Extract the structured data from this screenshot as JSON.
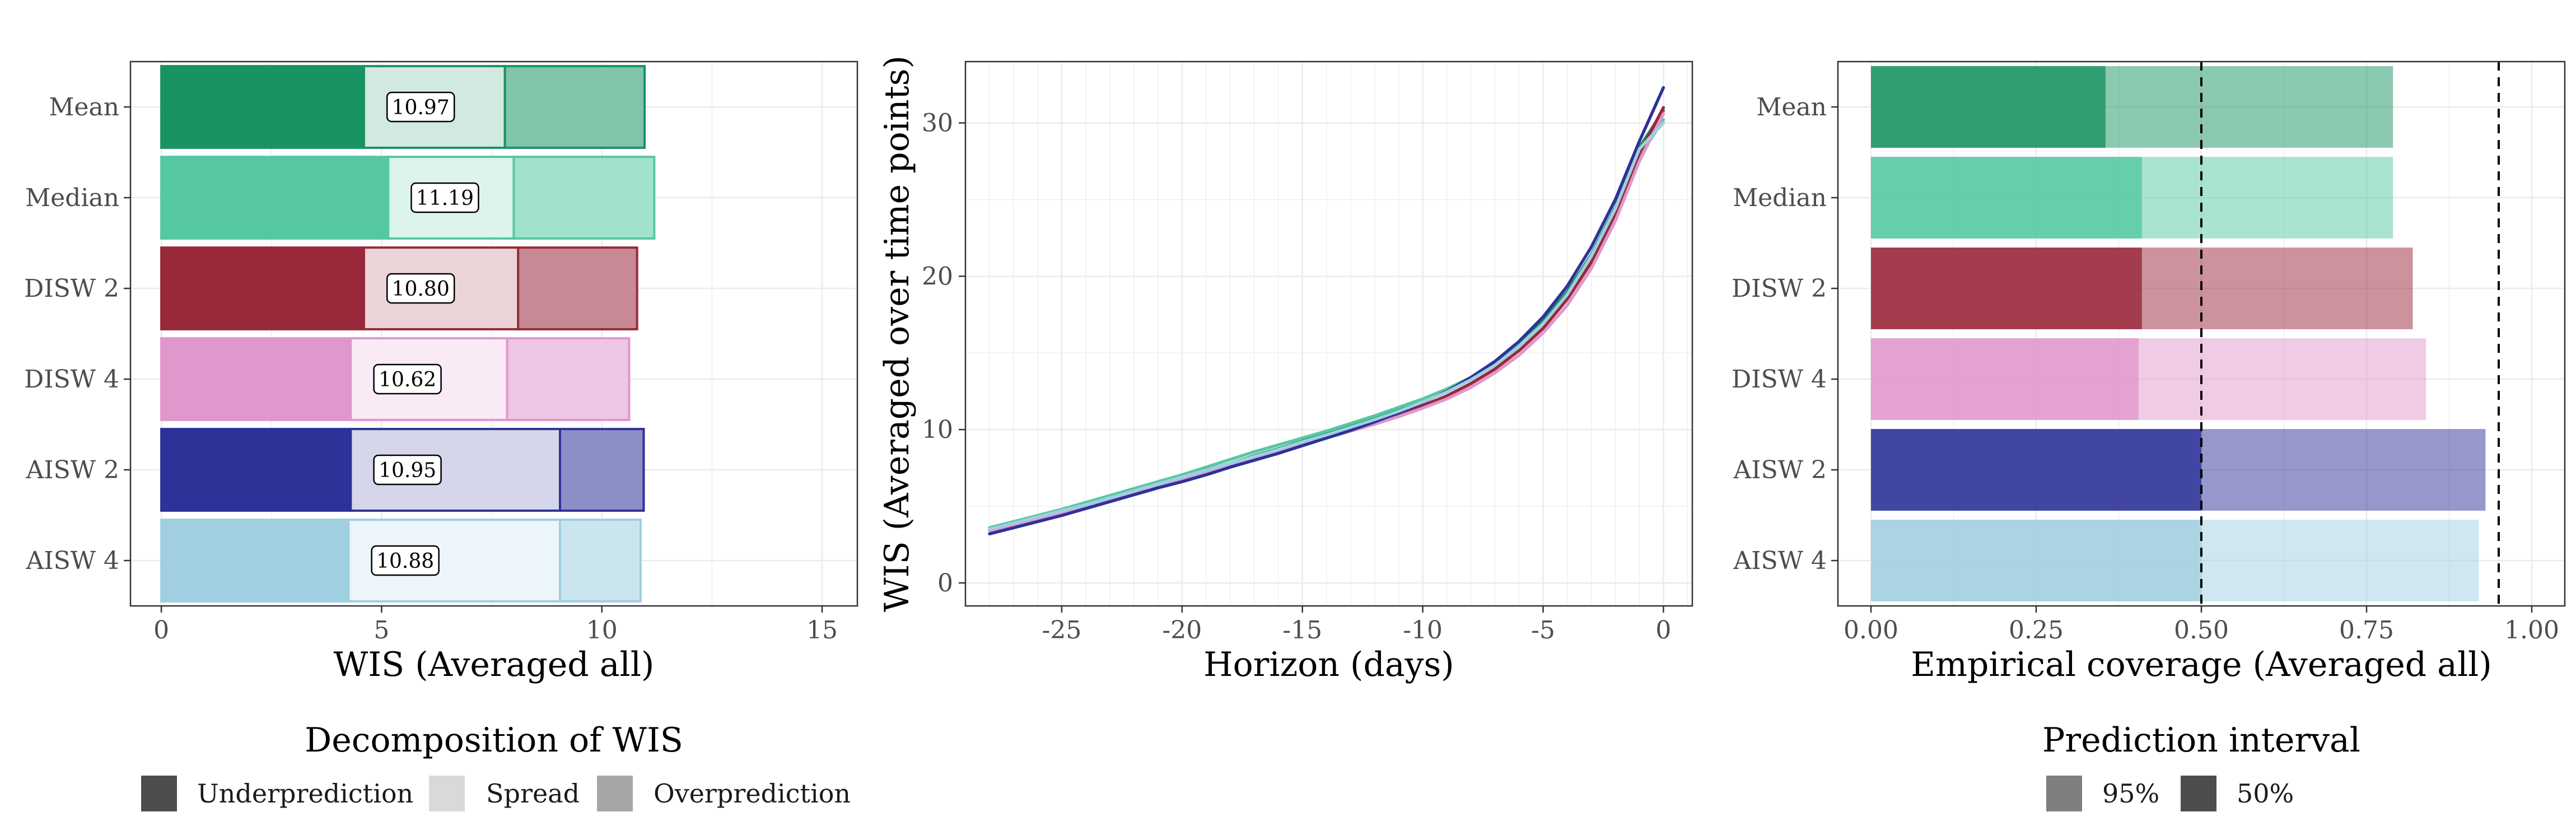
{
  "chart_data": [
    {
      "type": "bar",
      "orientation": "horizontal",
      "stacked": true,
      "xlabel": "WIS (Averaged all)",
      "xlim": [
        0,
        15
      ],
      "x_ticks": [
        0,
        5,
        10,
        15
      ],
      "grid": true,
      "categories": [
        "Mean",
        "Median",
        "DISW 2",
        "DISW 4",
        "AISW 2",
        "AISW 4"
      ],
      "series": [
        {
          "name": "Underprediction",
          "values": [
            4.6,
            5.15,
            4.6,
            4.3,
            4.3,
            4.25
          ]
        },
        {
          "name": "Spread",
          "values": [
            3.2,
            2.85,
            3.5,
            3.55,
            4.75,
            4.8
          ]
        },
        {
          "name": "Overprediction",
          "values": [
            3.17,
            3.19,
            2.7,
            2.77,
            1.9,
            1.83
          ]
        }
      ],
      "data_labels": [
        "10.97",
        "11.19",
        "10.80",
        "10.62",
        "10.95",
        "10.88"
      ],
      "legend": {
        "title": "Decomposition of WIS",
        "position": "bottom",
        "items": [
          "Underprediction",
          "Spread",
          "Overprediction"
        ],
        "swatch_colors": [
          "#4d4d4d",
          "#d9d9d9",
          "#a6a6a6"
        ]
      },
      "colors": [
        "#1a9363",
        "#55c8a3",
        "#99283b",
        "#e097cc",
        "#2d3298",
        "#a0cfe1"
      ]
    },
    {
      "type": "line",
      "xlabel": "Horizon (days)",
      "ylabel": "WIS (Averaged over time points)",
      "xlim": [
        -29,
        1.2
      ],
      "ylim": [
        -1.5,
        34
      ],
      "x_ticks": [
        -25,
        -20,
        -15,
        -10,
        -5,
        0
      ],
      "y_ticks": [
        0,
        10,
        20,
        30
      ],
      "grid": true,
      "x": [
        -28,
        -27,
        -26,
        -25,
        -24,
        -23,
        -22,
        -21,
        -20,
        -19,
        -18,
        -17,
        -16,
        -15,
        -14,
        -13,
        -12,
        -11,
        -10,
        -9,
        -8,
        -7,
        -6,
        -5,
        -4,
        -3,
        -2,
        -1,
        0
      ],
      "series": [
        {
          "color": "#1a9363",
          "values": [
            3.5,
            3.9,
            4.3,
            4.7,
            5.1,
            5.55,
            6.0,
            6.45,
            6.9,
            7.35,
            7.8,
            8.3,
            8.75,
            9.25,
            9.7,
            10.2,
            10.75,
            11.3,
            11.9,
            12.6,
            13.4,
            14.4,
            15.6,
            17.1,
            19.0,
            21.4,
            24.5,
            28.4,
            30.8
          ]
        },
        {
          "color": "#55c8a3",
          "values": [
            3.6,
            4.0,
            4.4,
            4.8,
            5.25,
            5.7,
            6.15,
            6.6,
            7.05,
            7.55,
            8.05,
            8.55,
            9.0,
            9.45,
            9.9,
            10.4,
            10.9,
            11.45,
            12.0,
            12.65,
            13.4,
            14.35,
            15.5,
            16.9,
            18.7,
            21.0,
            24.0,
            27.8,
            30.2
          ]
        },
        {
          "color": "#99283b",
          "values": [
            3.4,
            3.8,
            4.2,
            4.6,
            5.0,
            5.4,
            5.85,
            6.3,
            6.75,
            7.2,
            7.65,
            8.15,
            8.6,
            9.1,
            9.55,
            10.0,
            10.5,
            11.0,
            11.55,
            12.2,
            13.0,
            13.95,
            15.15,
            16.6,
            18.5,
            20.9,
            24.1,
            28.0,
            31.0
          ]
        },
        {
          "color": "#e097cc",
          "values": [
            3.4,
            3.8,
            4.2,
            4.6,
            5.0,
            5.4,
            5.85,
            6.3,
            6.75,
            7.2,
            7.65,
            8.1,
            8.55,
            9.0,
            9.45,
            9.9,
            10.35,
            10.85,
            11.4,
            12.0,
            12.75,
            13.7,
            14.85,
            16.3,
            18.1,
            20.5,
            23.6,
            27.5,
            30.6
          ]
        },
        {
          "color": "#2d3298",
          "values": [
            3.2,
            3.6,
            4.0,
            4.4,
            4.85,
            5.3,
            5.75,
            6.2,
            6.6,
            7.05,
            7.55,
            8.0,
            8.45,
            8.95,
            9.45,
            9.95,
            10.5,
            11.1,
            11.75,
            12.5,
            13.4,
            14.45,
            15.75,
            17.35,
            19.35,
            21.9,
            25.0,
            28.8,
            32.3
          ]
        },
        {
          "color": "#a0cfe1",
          "values": [
            3.5,
            3.9,
            4.3,
            4.7,
            5.1,
            5.55,
            6.0,
            6.45,
            6.9,
            7.35,
            7.8,
            8.25,
            8.7,
            9.2,
            9.65,
            10.15,
            10.65,
            11.2,
            11.8,
            12.45,
            13.25,
            14.2,
            15.4,
            16.9,
            18.8,
            21.3,
            24.4,
            28.3,
            30.0
          ]
        }
      ]
    },
    {
      "type": "bar",
      "orientation": "horizontal",
      "xlabel": "Empirical coverage (Averaged all)",
      "xlim": [
        -0.05,
        1.05
      ],
      "x_ticks": [
        0.0,
        0.25,
        0.5,
        0.75,
        1.0
      ],
      "x_tick_labels": [
        "0.00",
        "0.25",
        "0.50",
        "0.75",
        "1.00"
      ],
      "grid": true,
      "reference_lines": [
        0.5,
        0.95
      ],
      "categories": [
        "Mean",
        "Median",
        "DISW 2",
        "DISW 4",
        "AISW 2",
        "AISW 4"
      ],
      "series": [
        {
          "name": "50%",
          "values": [
            0.355,
            0.41,
            0.41,
            0.405,
            0.5,
            0.5
          ]
        },
        {
          "name": "95%",
          "values": [
            0.79,
            0.79,
            0.82,
            0.84,
            0.93,
            0.92
          ]
        }
      ],
      "legend": {
        "title": "Prediction interval",
        "position": "bottom",
        "items": [
          "95%",
          "50%"
        ],
        "swatch_colors": [
          "#7f7f7f",
          "#4d4d4d"
        ]
      },
      "colors": [
        "#1a9363",
        "#55c8a3",
        "#99283b",
        "#e097cc",
        "#2d3298",
        "#a0cfe1"
      ]
    }
  ]
}
